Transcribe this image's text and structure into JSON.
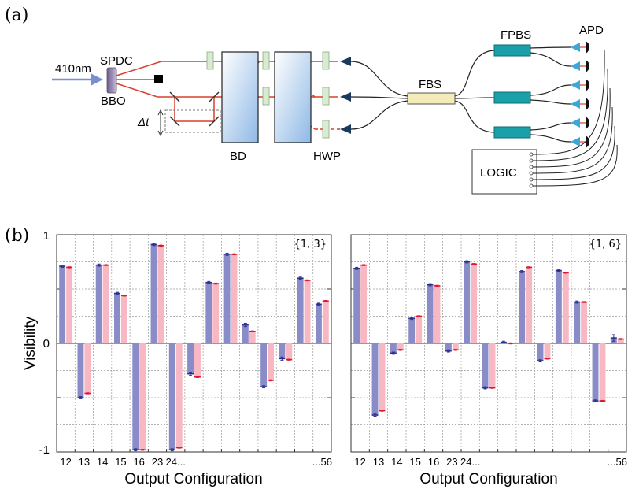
{
  "panel_a": {
    "label": "(a)",
    "labels": {
      "laser": "410nm",
      "spdc": "SPDC",
      "bbo": "BBO",
      "delay": "Δt",
      "bd": "BD",
      "hwp": "HWP",
      "fbs": "FBS",
      "fpbs": "FPBS",
      "apd": "APD",
      "logic": "LOGIC"
    }
  },
  "panel_b": {
    "label": "(b)",
    "ylabel": "Visibility",
    "xlabel": "Output Configuration",
    "ytick_labels": [
      "1",
      "0",
      "-1"
    ]
  },
  "colors": {
    "measured": "#8a8cc8",
    "measured_err": "#2b2f8f",
    "theory": "#f7b7c3",
    "theory_err": "#e0182d",
    "beam": "#d9412b"
  },
  "chart_data": [
    {
      "type": "bar",
      "tag": "{1, 3}",
      "ylim": [
        -1,
        1
      ],
      "grid": true,
      "tick_labels": [
        "12",
        "13",
        "14",
        "15",
        "16",
        "23",
        "24...",
        "...56"
      ],
      "series": [
        {
          "values": [
            0.71,
            -0.5,
            0.72,
            0.46,
            -0.98,
            0.91,
            -0.98,
            -0.28,
            0.56,
            0.82,
            0.17,
            -0.4,
            -0.14,
            0.6,
            0.36
          ],
          "errors": [
            0.01,
            0.01,
            0.01,
            0.01,
            0.01,
            0.01,
            0.01,
            0.015,
            0.01,
            0.01,
            0.015,
            0.01,
            0.015,
            0.01,
            0.01
          ]
        },
        {
          "values": [
            0.7,
            -0.46,
            0.72,
            0.44,
            -0.98,
            0.9,
            -0.96,
            -0.31,
            0.55,
            0.82,
            0.11,
            -0.34,
            -0.15,
            0.58,
            0.39
          ],
          "errors": [
            0.005,
            0.005,
            0.005,
            0.005,
            0.005,
            0.005,
            0.005,
            0.005,
            0.005,
            0.005,
            0.005,
            0.005,
            0.005,
            0.005,
            0.005
          ]
        }
      ]
    },
    {
      "type": "bar",
      "tag": "{1, 6}",
      "ylim": [
        -1,
        1
      ],
      "grid": true,
      "tick_labels": [
        "12",
        "13",
        "14",
        "15",
        "16",
        "23",
        "24...",
        "...56"
      ],
      "series": [
        {
          "values": [
            0.69,
            -0.66,
            -0.09,
            0.23,
            0.54,
            -0.07,
            0.75,
            -0.41,
            0.01,
            0.66,
            -0.16,
            0.67,
            0.38,
            -0.53,
            0.05
          ],
          "errors": [
            0.01,
            0.01,
            0.01,
            0.01,
            0.01,
            0.01,
            0.01,
            0.01,
            0.01,
            0.01,
            0.01,
            0.01,
            0.01,
            0.01,
            0.03
          ]
        },
        {
          "values": [
            0.72,
            -0.62,
            -0.06,
            0.25,
            0.53,
            -0.06,
            0.73,
            -0.41,
            0.0,
            0.7,
            -0.14,
            0.65,
            0.38,
            -0.53,
            0.04
          ],
          "errors": [
            0.005,
            0.005,
            0.005,
            0.005,
            0.005,
            0.005,
            0.005,
            0.005,
            0.005,
            0.005,
            0.005,
            0.005,
            0.005,
            0.005,
            0.005
          ]
        }
      ]
    }
  ]
}
